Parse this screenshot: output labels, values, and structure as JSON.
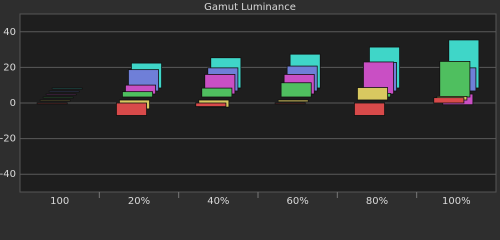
{
  "chart_data": {
    "type": "bar3d",
    "title": "Gamut Luminance",
    "categories": [
      "100",
      "20%",
      "40%",
      "60%",
      "80%",
      "100%"
    ],
    "series": [
      {
        "color": "#3fd6c8",
        "values": [
          0,
          14,
          17,
          19,
          23,
          27
        ]
      },
      {
        "color": "#6f7fd8",
        "values": [
          0,
          12,
          13,
          14,
          16,
          13
        ]
      },
      {
        "color": "#c94fc4",
        "values": [
          0,
          5,
          11,
          11,
          18,
          -6
        ]
      },
      {
        "color": "#4fbf5f",
        "values": [
          0,
          3,
          5,
          8,
          2,
          20
        ]
      },
      {
        "color": "#d8c860",
        "values": [
          0,
          -5,
          -4,
          -1,
          7,
          2
        ]
      },
      {
        "color": "#d84a4a",
        "values": [
          0,
          -7,
          -2,
          0,
          -7,
          3
        ]
      }
    ],
    "ylim": [
      -50,
      50
    ],
    "yticks": [
      -40,
      -20,
      0,
      20,
      40
    ],
    "grid": true
  }
}
